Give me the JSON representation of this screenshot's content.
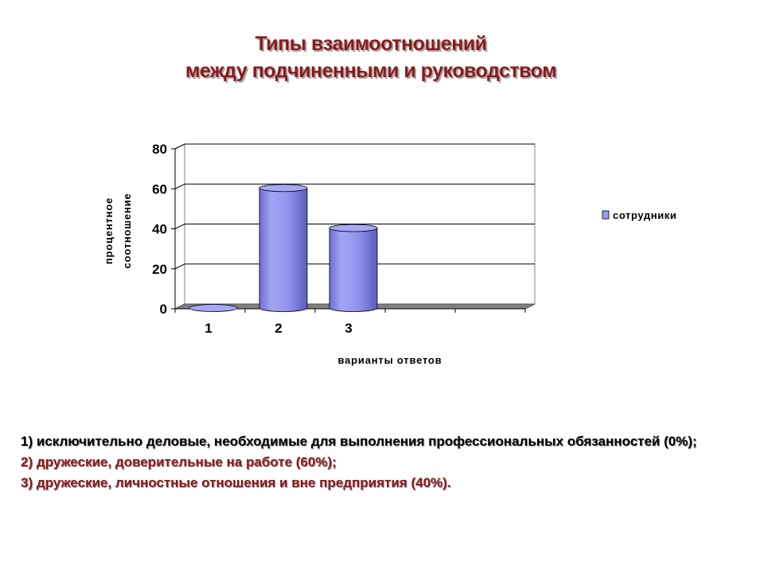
{
  "slide": {
    "title_line1": "Типы взаимоотношений",
    "title_line2": "между подчиненными и руководством"
  },
  "chart_data": {
    "type": "bar",
    "style": "3d-cylinder",
    "categories": [
      "1",
      "2",
      "3"
    ],
    "series": [
      {
        "name": "сотрудники",
        "values": [
          0,
          60,
          40
        ],
        "color": "#9999ff"
      }
    ],
    "xlabel": "варианты ответов",
    "ylabel_lines": [
      "процентное",
      "соотношение"
    ],
    "ylim": [
      0,
      80
    ],
    "yticks": [
      "0",
      "20",
      "40",
      "60",
      "80"
    ],
    "grid": true,
    "legend_position": "right",
    "floor_color": "#808080"
  },
  "notes": [
    {
      "text": "1) исключительно деловые, необходимые для выполнения профессиональных обязанностей (0%);",
      "color": "#000000"
    },
    {
      "text": "2) дружеские, доверительные на работе (60%);",
      "color": "#8b1a1a"
    },
    {
      "text": "3) дружеские, личностные отношения и вне предприятия (40%).",
      "color": "#8b1a1a"
    }
  ]
}
